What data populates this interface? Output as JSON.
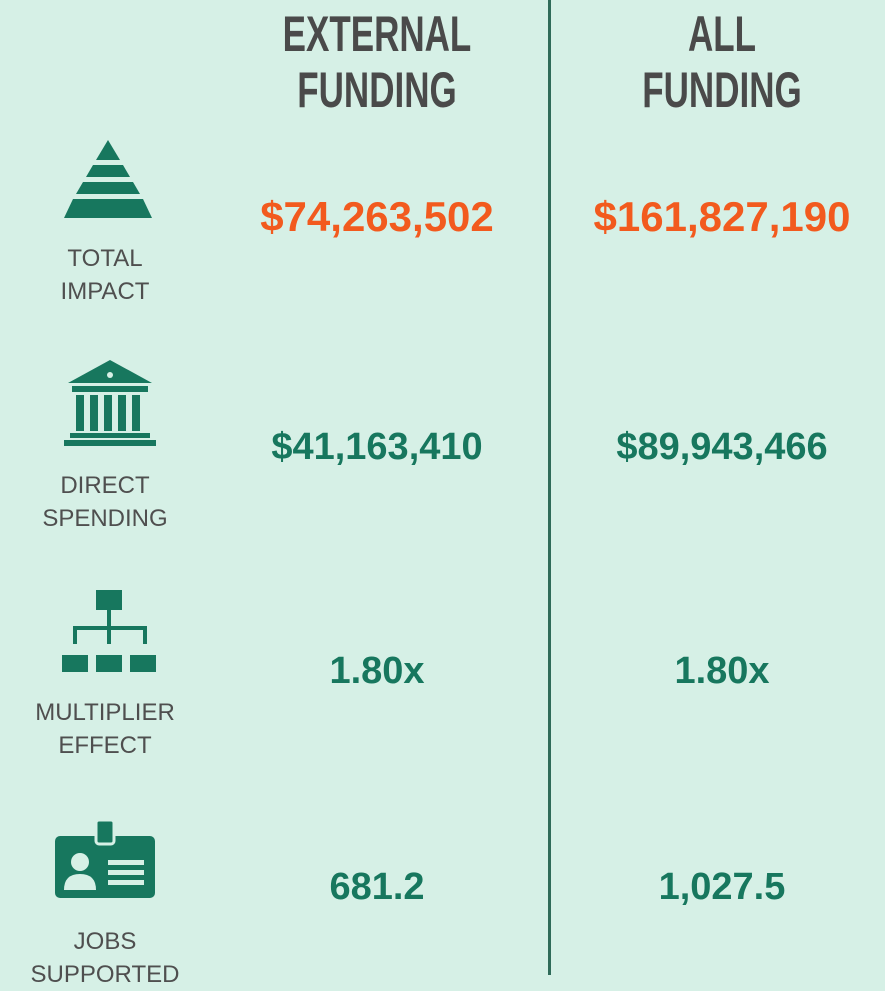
{
  "columns": [
    {
      "lines": [
        "EXTERNAL",
        "FUNDING"
      ]
    },
    {
      "lines": [
        "ALL",
        "FUNDING"
      ]
    }
  ],
  "rows": [
    {
      "label": [
        "TOTAL",
        "IMPACT"
      ],
      "values": [
        "$74,263,502",
        "$161,827,190"
      ]
    },
    {
      "label": [
        "DIRECT",
        "SPENDING"
      ],
      "values": [
        "$41,163,410",
        "$89,943,466"
      ]
    },
    {
      "label": [
        "MULTIPLIER",
        "EFFECT"
      ],
      "values": [
        "1.80x",
        "1.80x"
      ]
    },
    {
      "label": [
        "JOBS",
        "SUPPORTED"
      ],
      "values": [
        "681.2",
        "1,027.5"
      ]
    }
  ]
}
